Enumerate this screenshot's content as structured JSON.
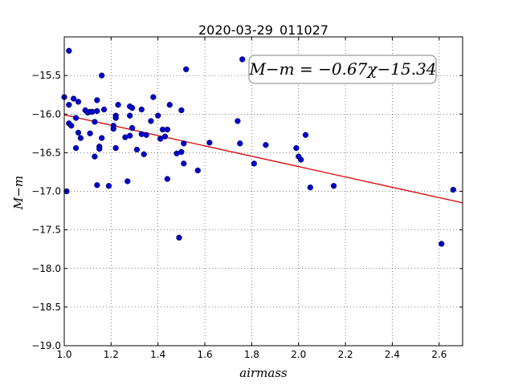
{
  "chart_data": {
    "type": "scatter",
    "title": "2020-03-29_011027",
    "xlabel": "airmass",
    "ylabel": "M−m",
    "xlim": [
      1.0,
      2.7
    ],
    "ylim": [
      -19.0,
      -15.0
    ],
    "y_inverted": false,
    "x_ticks": [
      1.0,
      1.2,
      1.4,
      1.6,
      1.8,
      2.0,
      2.2,
      2.4,
      2.6
    ],
    "x_tick_labels": [
      "1.0",
      "1.2",
      "1.4",
      "1.6",
      "1.8",
      "2.0",
      "2.2",
      "2.4",
      "2.6"
    ],
    "y_ticks": [
      -15.5,
      -16.0,
      -16.5,
      -17.0,
      -17.5,
      -18.0,
      -18.5,
      -19.0
    ],
    "y_tick_labels": [
      "−15.5",
      "−16.0",
      "−16.5",
      "−17.0",
      "−17.5",
      "−18.0",
      "−18.5",
      "−19.0"
    ],
    "grid": true,
    "annotation": "M−m = −0.67χ−15.34",
    "fit": {
      "slope": -0.67,
      "intercept": -15.34,
      "color": "#dd0000"
    },
    "point_color": "#0000cc",
    "points": [
      [
        1.0,
        -15.78
      ],
      [
        1.01,
        -17.0
      ],
      [
        1.02,
        -15.88
      ],
      [
        1.02,
        -15.18
      ],
      [
        1.02,
        -16.12
      ],
      [
        1.03,
        -16.15
      ],
      [
        1.04,
        -15.8
      ],
      [
        1.05,
        -16.44
      ],
      [
        1.05,
        -16.05
      ],
      [
        1.06,
        -15.84
      ],
      [
        1.06,
        -16.24
      ],
      [
        1.07,
        -16.31
      ],
      [
        1.09,
        -15.95
      ],
      [
        1.1,
        -15.98
      ],
      [
        1.11,
        -15.97
      ],
      [
        1.11,
        -16.25
      ],
      [
        1.12,
        -15.97
      ],
      [
        1.13,
        -16.1
      ],
      [
        1.13,
        -16.55
      ],
      [
        1.14,
        -15.82
      ],
      [
        1.14,
        -15.96
      ],
      [
        1.14,
        -16.92
      ],
      [
        1.15,
        -16.42
      ],
      [
        1.15,
        -16.45
      ],
      [
        1.16,
        -16.31
      ],
      [
        1.16,
        -15.5
      ],
      [
        1.17,
        -15.94
      ],
      [
        1.19,
        -16.93
      ],
      [
        1.21,
        -16.15
      ],
      [
        1.21,
        -16.19
      ],
      [
        1.22,
        -16.02
      ],
      [
        1.22,
        -16.05
      ],
      [
        1.22,
        -16.44
      ],
      [
        1.23,
        -15.88
      ],
      [
        1.26,
        -16.3
      ],
      [
        1.27,
        -16.87
      ],
      [
        1.28,
        -16.28
      ],
      [
        1.28,
        -15.9
      ],
      [
        1.28,
        -16.02
      ],
      [
        1.29,
        -16.18
      ],
      [
        1.29,
        -15.92
      ],
      [
        1.31,
        -16.46
      ],
      [
        1.33,
        -16.26
      ],
      [
        1.33,
        -15.94
      ],
      [
        1.34,
        -16.52
      ],
      [
        1.35,
        -16.27
      ],
      [
        1.37,
        -16.09
      ],
      [
        1.38,
        -15.78
      ],
      [
        1.4,
        -16.02
      ],
      [
        1.41,
        -16.32
      ],
      [
        1.42,
        -16.2
      ],
      [
        1.43,
        -16.29
      ],
      [
        1.44,
        -16.2
      ],
      [
        1.44,
        -16.84
      ],
      [
        1.45,
        -15.88
      ],
      [
        1.48,
        -16.51
      ],
      [
        1.49,
        -17.6
      ],
      [
        1.5,
        -16.49
      ],
      [
        1.5,
        -15.95
      ],
      [
        1.51,
        -16.64
      ],
      [
        1.51,
        -16.38
      ],
      [
        1.52,
        -15.42
      ],
      [
        1.57,
        -16.73
      ],
      [
        1.62,
        -16.37
      ],
      [
        1.74,
        -16.09
      ],
      [
        1.75,
        -16.38
      ],
      [
        1.76,
        -15.29
      ],
      [
        1.81,
        -16.64
      ],
      [
        1.86,
        -16.4
      ],
      [
        1.99,
        -16.44
      ],
      [
        2.0,
        -16.55
      ],
      [
        2.01,
        -16.59
      ],
      [
        2.03,
        -16.27
      ],
      [
        2.05,
        -16.95
      ],
      [
        2.15,
        -16.93
      ],
      [
        2.61,
        -17.68
      ],
      [
        2.66,
        -16.98
      ]
    ]
  }
}
